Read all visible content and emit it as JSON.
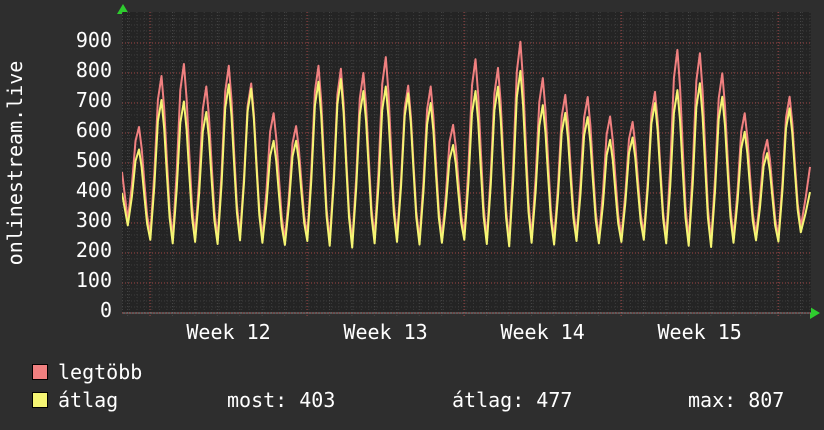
{
  "site_label": "onlinestream.live",
  "colors": {
    "background": "#2e2e2e",
    "plot_background": "#242424",
    "grid_minor": "#3b3b3b",
    "grid_day": "#474747",
    "grid_major_red": "#a04545",
    "baseline": "#8a8a8a",
    "baseline_red": "#b05050",
    "axis_arrow": "#2ecc2e",
    "series_legtobb": "#f08080",
    "series_atlag": "#f5f573",
    "text": "#ffffff"
  },
  "chart_data": {
    "type": "line",
    "title": "onlinestream.live",
    "y_axis_title": "onlinestream.live",
    "ylim": [
      0,
      1000
    ],
    "y_ticks": [
      900,
      800,
      700,
      600,
      500,
      400,
      300,
      200,
      100,
      0
    ],
    "x_tick_labels": [
      "Week 12",
      "Week 13",
      "Week 14",
      "Week 15"
    ],
    "x_span_days": 30.67,
    "week_start_offset_days": 1.25,
    "grid": {
      "minor_y_step": 20,
      "major_y_step": 100,
      "minor_x_step_hours": 8,
      "major_x_step": "week"
    },
    "legend_position": "bottom-left",
    "series": [
      {
        "name": "legtöbb",
        "color": "#f08080",
        "daily_peaks": [
          620,
          790,
          830,
          755,
          824,
          765,
          666,
          623,
          824,
          814,
          800,
          853,
          758,
          755,
          627,
          846,
          817,
          904,
          783,
          727,
          720,
          655,
          637,
          737,
          877,
          866,
          799,
          666,
          577,
          721
        ],
        "daily_troughs": [
          310,
          262,
          250,
          255,
          248,
          260,
          252,
          245,
          258,
          242,
          236,
          250,
          255,
          246,
          252,
          262,
          248,
          240,
          252,
          246,
          258,
          250,
          255,
          262,
          250,
          242,
          238,
          252,
          260,
          256,
          287
        ],
        "edge_start": 470,
        "edge_end": 487
      },
      {
        "name": "átlag",
        "color": "#f5f573",
        "daily_peaks": [
          545,
          710,
          705,
          670,
          762,
          748,
          574,
          574,
          771,
          780,
          740,
          755,
          732,
          700,
          560,
          740,
          754,
          807,
          693,
          667,
          653,
          577,
          585,
          700,
          743,
          766,
          721,
          604,
          533,
          682
        ],
        "daily_troughs": [
          292,
          244,
          232,
          237,
          230,
          242,
          234,
          227,
          240,
          224,
          218,
          232,
          237,
          228,
          234,
          244,
          230,
          222,
          234,
          228,
          240,
          232,
          237,
          244,
          232,
          224,
          220,
          234,
          242,
          238,
          269
        ],
        "edge_start": 400,
        "edge_end": 403
      }
    ]
  },
  "legend": {
    "items": [
      {
        "label": "legtöbb",
        "color": "#f08080"
      },
      {
        "label": "átlag",
        "color": "#f5f573"
      }
    ]
  },
  "stats": {
    "items": [
      {
        "label": "most",
        "value": "403",
        "text": "most: 403"
      },
      {
        "label": "átlag",
        "value": "477",
        "text": "átlag: 477"
      },
      {
        "label": "max",
        "value": "807",
        "text": "max: 807"
      }
    ]
  }
}
